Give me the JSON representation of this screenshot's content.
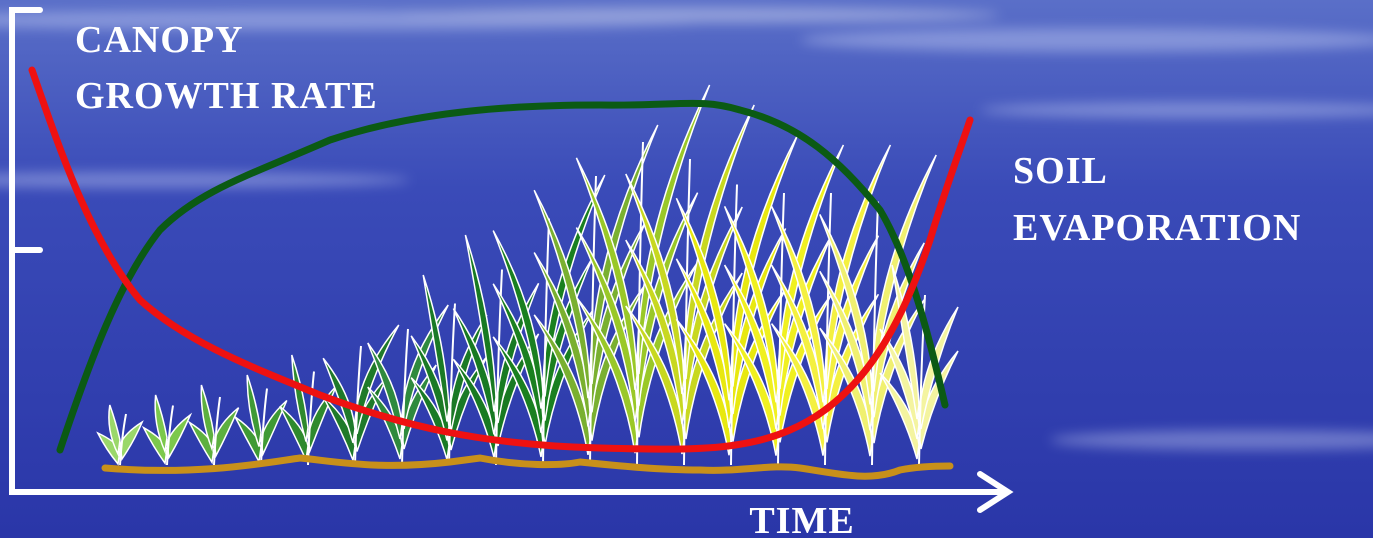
{
  "labels": {
    "canopy": [
      "CANOPY",
      "GROWTH RATE"
    ],
    "soil": [
      "SOIL",
      "EVAPORATION"
    ],
    "x_axis": "TIME"
  }
}
